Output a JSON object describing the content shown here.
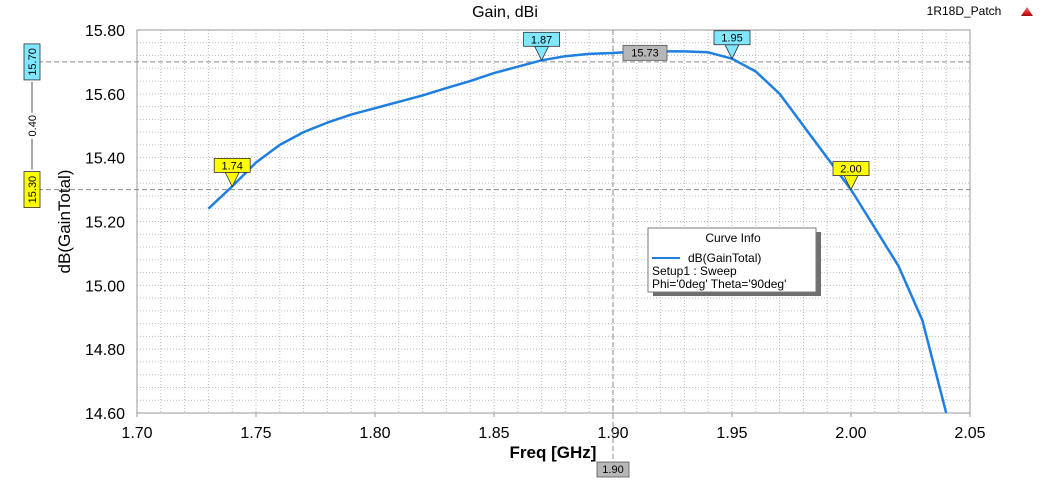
{
  "chart_data": {
    "type": "line",
    "title": "Gain, dBi",
    "design_name": "1R18D_Patch",
    "xlabel": "Freq [GHz]",
    "ylabel": "dB(GainTotal)",
    "xlim": [
      1.7,
      2.05
    ],
    "ylim": [
      14.6,
      15.8
    ],
    "x_ticks": [
      "1.70",
      "1.75",
      "1.80",
      "1.85",
      "1.90",
      "1.95",
      "2.00",
      "2.05"
    ],
    "y_ticks": [
      "15.80",
      "15.60",
      "15.40",
      "15.20",
      "15.00",
      "14.80",
      "14.60"
    ],
    "grid": true,
    "series": [
      {
        "name": "dB(GainTotal)",
        "color": "#1e7fe0",
        "x": [
          1.73,
          1.74,
          1.75,
          1.76,
          1.77,
          1.78,
          1.79,
          1.8,
          1.81,
          1.82,
          1.83,
          1.84,
          1.85,
          1.86,
          1.87,
          1.88,
          1.89,
          1.9,
          1.91,
          1.92,
          1.93,
          1.94,
          1.95,
          1.96,
          1.97,
          1.98,
          1.99,
          2.0,
          2.01,
          2.02,
          2.03,
          2.04
        ],
        "y": [
          15.24,
          15.31,
          15.385,
          15.44,
          15.48,
          15.51,
          15.535,
          15.555,
          15.575,
          15.595,
          15.618,
          15.64,
          15.665,
          15.685,
          15.705,
          15.718,
          15.725,
          15.728,
          15.733,
          15.733,
          15.733,
          15.73,
          15.71,
          15.67,
          15.6,
          15.5,
          15.4,
          15.3,
          15.18,
          15.06,
          14.89,
          14.6
        ]
      }
    ],
    "legend": {
      "title": "Curve Info",
      "lines": [
        "dB(GainTotal)",
        "Setup1 : Sweep",
        "Phi='0deg' Theta='90deg'"
      ],
      "placement": "center-right"
    },
    "markers": [
      {
        "x": 1.74,
        "y": 15.31,
        "label": "1.74",
        "color": "#ffff00"
      },
      {
        "x": 1.87,
        "y": 15.705,
        "label": "1.87",
        "color": "#7fe7ff"
      },
      {
        "x": 1.95,
        "y": 15.71,
        "label": "1.95",
        "color": "#7fe7ff"
      },
      {
        "x": 2.0,
        "y": 15.3,
        "label": "2.00",
        "color": "#ffff00"
      }
    ],
    "crosshair": {
      "x": 1.9,
      "x_label": "1.90",
      "y_label": "15.73"
    },
    "horizontal_refs": [
      {
        "y": 15.7,
        "label": "15.70",
        "color": "#7fe7ff"
      },
      {
        "y": 15.3,
        "label": "15.30",
        "color": "#ffff00"
      }
    ],
    "delta_label": "0.40"
  }
}
